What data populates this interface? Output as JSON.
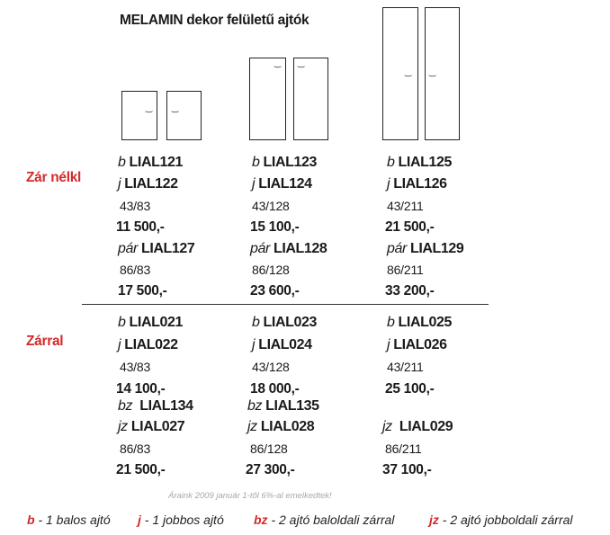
{
  "title": "MELAMIN dekor felületű ajtók",
  "sections": {
    "no_lock": "Zár nélkl",
    "with_lock": "Zárral"
  },
  "columns": [
    {
      "no_lock": {
        "b": {
          "prefix": "b",
          "code": "LIAL121"
        },
        "j": {
          "prefix": "j",
          "code": "LIAL122"
        },
        "single_dim": "43/83",
        "single_price": "11 500,-",
        "pair": {
          "prefix": "pár",
          "code": "LIAL127"
        },
        "pair_dim": "86/83",
        "pair_price": "17 500,-"
      },
      "with_lock": {
        "b": {
          "prefix": "b",
          "code": "LIAL021"
        },
        "j": {
          "prefix": "j",
          "code": "LIAL022"
        },
        "single_dim": "43/83",
        "single_price": "14 100,-",
        "bz": {
          "prefix": "bz",
          "code": "LIAL134"
        },
        "jz": {
          "prefix": "jz",
          "code": "LIAL027"
        },
        "pair_dim": "86/83",
        "pair_price": "21 500,-"
      }
    },
    {
      "no_lock": {
        "b": {
          "prefix": "b",
          "code": "LIAL123"
        },
        "j": {
          "prefix": "j",
          "code": "LIAL124"
        },
        "single_dim": "43/128",
        "single_price": "15 100,-",
        "pair": {
          "prefix": "pár",
          "code": "LIAL128"
        },
        "pair_dim": "86/128",
        "pair_price": "23 600,-"
      },
      "with_lock": {
        "b": {
          "prefix": "b",
          "code": "LIAL023"
        },
        "j": {
          "prefix": "j",
          "code": "LIAL024"
        },
        "single_dim": "43/128",
        "single_price": "18 000,-",
        "bz": {
          "prefix": "bz",
          "code": "LIAL135"
        },
        "jz": {
          "prefix": "jz",
          "code": "LIAL028"
        },
        "pair_dim": "86/128",
        "pair_price": "27 300,-"
      }
    },
    {
      "no_lock": {
        "b": {
          "prefix": "b",
          "code": "LIAL125"
        },
        "j": {
          "prefix": "j",
          "code": "LIAL126"
        },
        "single_dim": "43/211",
        "single_price": "21 500,-",
        "pair": {
          "prefix": "pár",
          "code": "LIAL129"
        },
        "pair_dim": "86/211",
        "pair_price": "33 200,-"
      },
      "with_lock": {
        "b": {
          "prefix": "b",
          "code": "LIAL025"
        },
        "j": {
          "prefix": "j",
          "code": "LIAL026"
        },
        "single_dim": "43/211",
        "single_price": "25 100,-",
        "jz": {
          "prefix": "jz",
          "code": "LIAL029"
        },
        "pair_dim": "86/211",
        "pair_price": "37 100,-"
      }
    }
  ],
  "note": "Áraink 2009 január 1-től 6%-al emelkedtek!",
  "legend": [
    {
      "key": "b",
      "text": " - 1 balos ajtó"
    },
    {
      "key": "j",
      "text": " - 1 jobbos ajtó"
    },
    {
      "key": "bz",
      "text": " - 2 ajtó baloldali zárral"
    },
    {
      "key": "jz",
      "text": " - 2 ajtó jobboldali zárral"
    }
  ]
}
